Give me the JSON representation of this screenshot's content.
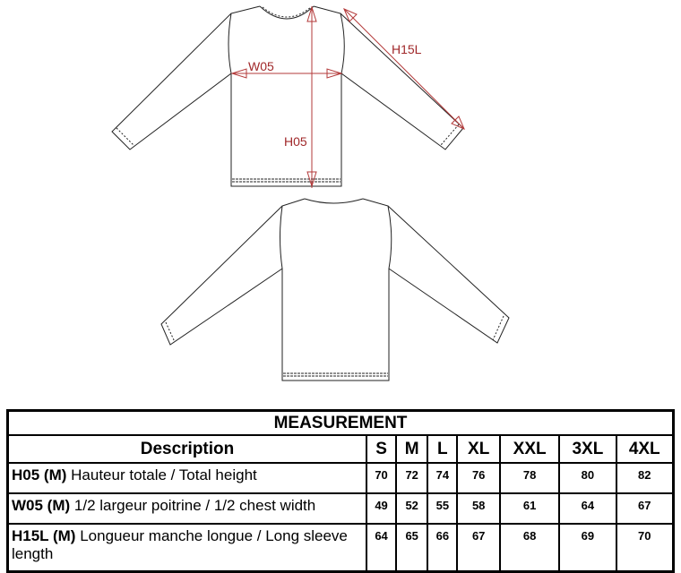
{
  "diagram": {
    "labels": {
      "width": "W05",
      "height": "H05",
      "sleeve": "H15L"
    },
    "colors": {
      "outline": "#222222",
      "measure": "#b33a3a"
    }
  },
  "table": {
    "title": "MEASUREMENT",
    "description_header": "Description",
    "sizes": [
      "S",
      "M",
      "L",
      "XL",
      "XXL",
      "3XL",
      "4XL"
    ],
    "rows": [
      {
        "code": "H05 (M)",
        "text": "Hauteur totale / Total height",
        "values": [
          "70",
          "72",
          "74",
          "76",
          "78",
          "80",
          "82"
        ]
      },
      {
        "code": "W05 (M)",
        "text": "1/2 largeur poitrine / 1/2 chest width",
        "values": [
          "49",
          "52",
          "55",
          "58",
          "61",
          "64",
          "67"
        ]
      },
      {
        "code": "H15L (M)",
        "text": "Longueur manche longue / Long sleeve length",
        "values": [
          "64",
          "65",
          "66",
          "67",
          "68",
          "69",
          "70"
        ]
      }
    ]
  }
}
